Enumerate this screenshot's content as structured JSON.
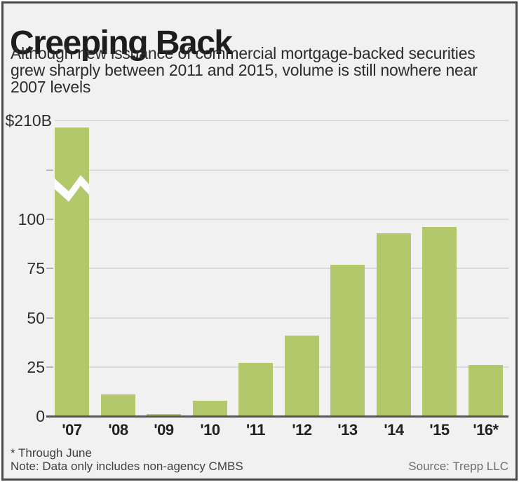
{
  "header": {
    "title": "Creeping Back",
    "subtitle_lines": [
      "Although new issuance of commercial mortgage-backed securities",
      "grew sharply between 2011 and 2015, volume is still nowhere near",
      "2007 levels"
    ]
  },
  "chart_data": {
    "type": "bar",
    "title": "Creeping Back",
    "unit": "billions of US dollars",
    "categories": [
      "'07",
      "'08",
      "'09",
      "'10",
      "'11",
      "'12",
      "'13",
      "'14",
      "'15",
      "'16*"
    ],
    "values": [
      210,
      11,
      1,
      8,
      27,
      41,
      77,
      93,
      96,
      26
    ],
    "broken_bars": [
      "'07"
    ],
    "y_axis": {
      "top_label": "$210B",
      "labels": [
        {
          "value": 210,
          "text": "$210B"
        },
        {
          "value": 100,
          "text": "100"
        },
        {
          "value": 75,
          "text": "75"
        },
        {
          "value": 50,
          "text": "50"
        },
        {
          "value": 25,
          "text": "25"
        },
        {
          "value": 0,
          "text": "0"
        }
      ],
      "gridline_values": [
        210,
        125,
        100,
        75,
        50,
        25
      ],
      "tick_values": [
        125,
        100,
        75,
        50,
        25
      ],
      "ylim": [
        0,
        210
      ],
      "axis_break": "between 125 and 210"
    },
    "grid": true,
    "legend": false,
    "bar_color": "#b2c86a"
  },
  "footer": {
    "footnote1": "* Through June",
    "footnote2": "Note: Data only includes non-agency CMBS",
    "source": "Source: Trepp LLC"
  },
  "colors": {
    "background": "#f1f1f2",
    "frame": "#4a4b4d",
    "bar": "#b2c86a",
    "gridline": "#dadbdc",
    "baseline": "#56575a",
    "text": "#1d1d1e",
    "muted": "#6c6e70"
  }
}
